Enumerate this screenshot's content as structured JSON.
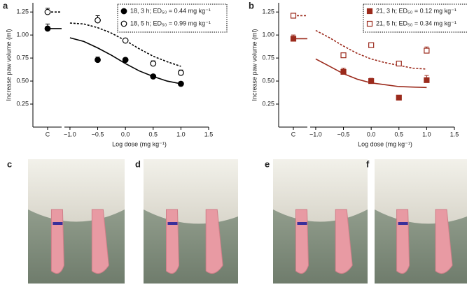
{
  "chart_data": [
    {
      "type": "scatter",
      "panel": "a",
      "xlabel": "Log dose (mg kg⁻¹)",
      "ylabel": "Increase paw volume (ml)",
      "control_label": "C",
      "xlim": [
        -1.1,
        1.5
      ],
      "xticks": [
        {
          "value": -1,
          "label": "−1.0"
        },
        {
          "value": -0.5,
          "label": "−0.5"
        },
        {
          "value": 0,
          "label": "0.0"
        },
        0.5,
        {
          "value": 1,
          "label": "1.0"
        },
        1.5
      ],
      "ylim": [
        0,
        1.35
      ],
      "yticks": [
        0.25,
        {
          "value": 0.5,
          "label": "0.50"
        },
        0.75,
        {
          "value": 1,
          "label": "1.00"
        },
        1.25
      ],
      "legend": "upper right",
      "fit_x": [
        -1,
        -0.75,
        -0.5,
        -0.25,
        0,
        0.25,
        0.5,
        0.75,
        1
      ],
      "series": [
        {
          "name": "18, 3 h; ED₅₀ = 0.44 mg kg⁻¹",
          "color": "#000000",
          "marker": "circle",
          "filled": true,
          "dashed": false,
          "control": 1.07,
          "control_error": 0.05,
          "x": [
            -0.5,
            0,
            0.5,
            1
          ],
          "values": [
            0.73,
            0.73,
            0.55,
            0.47
          ],
          "errors": [
            0.03,
            0.01,
            0.01,
            0.01
          ],
          "fit": [
            0.97,
            0.93,
            0.86,
            0.78,
            0.69,
            0.61,
            0.55,
            0.5,
            0.47
          ]
        },
        {
          "name": "18, 5 h; ED₅₀ = 0.99 mg kg⁻¹",
          "color": "#000000",
          "marker": "circle",
          "filled": false,
          "dashed": true,
          "control": 1.25,
          "control_error": 0.04,
          "x": [
            -0.5,
            0,
            0.5,
            1
          ],
          "values": [
            1.16,
            0.94,
            0.69,
            0.59
          ],
          "errors": [
            0.05,
            0.02,
            0.03,
            0.03
          ],
          "fit": [
            1.13,
            1.12,
            1.08,
            1.02,
            0.94,
            0.85,
            0.77,
            0.71,
            0.66
          ]
        }
      ]
    },
    {
      "type": "scatter",
      "panel": "b",
      "xlabel": "Log dose (mg kg⁻¹)",
      "ylabel": "Increase paw volume (ml)",
      "control_label": "C",
      "xlim": [
        -1.1,
        1.5
      ],
      "xticks": [
        {
          "value": -1,
          "label": "−1.0"
        },
        {
          "value": -0.5,
          "label": "−0.5"
        },
        {
          "value": 0,
          "label": "0.0"
        },
        0.5,
        {
          "value": 1,
          "label": "1.0"
        },
        1.5
      ],
      "ylim": [
        0,
        1.35
      ],
      "yticks": [
        0.25,
        {
          "value": 0.5,
          "label": "0.50"
        },
        0.75,
        {
          "value": 1,
          "label": "1.00"
        },
        1.25
      ],
      "legend": "upper right",
      "fit_x": [
        -1,
        -0.75,
        -0.5,
        -0.25,
        0,
        0.25,
        0.5,
        0.75,
        1
      ],
      "series": [
        {
          "name": "21, 3 h; ED₅₀ = 0.12 mg kg⁻¹",
          "color": "#9b2a1c",
          "marker": "square",
          "filled": true,
          "dashed": false,
          "control": 0.96,
          "control_error": 0.04,
          "x": [
            -0.5,
            0,
            0.5,
            1
          ],
          "values": [
            0.6,
            0.5,
            0.32,
            0.51
          ],
          "errors": [
            0.04,
            0.03,
            0.02,
            0.05
          ],
          "fit": [
            0.74,
            0.66,
            0.58,
            0.52,
            0.48,
            0.46,
            0.44,
            0.435,
            0.43
          ]
        },
        {
          "name": "21, 5 h; ED₅₀ = 0.34 mg kg⁻¹",
          "color": "#9b2a1c",
          "marker": "square",
          "filled": false,
          "dashed": true,
          "control": 1.21,
          "control_error": 0.02,
          "x": [
            -0.5,
            0,
            0.5,
            1
          ],
          "values": [
            0.78,
            0.89,
            0.69,
            0.83
          ],
          "errors": [
            0.01,
            0.01,
            0.02,
            0.04
          ],
          "fit": [
            1.05,
            0.97,
            0.88,
            0.8,
            0.74,
            0.7,
            0.67,
            0.64,
            0.63
          ]
        }
      ]
    }
  ],
  "photos": [
    "c",
    "d",
    "e",
    "f"
  ]
}
